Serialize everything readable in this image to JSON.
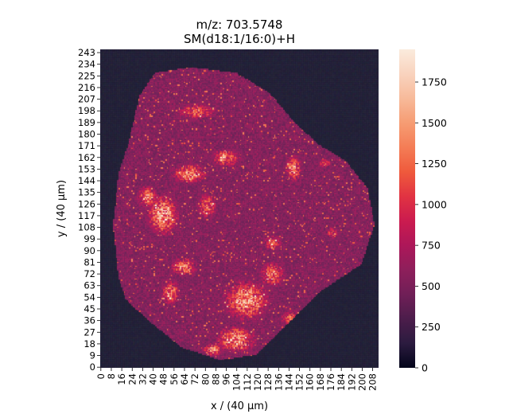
{
  "chart_data": {
    "type": "heatmap",
    "title_line1": "m/z: 703.5748",
    "title_line2": "SM(d18:1/16:0)+H",
    "xlabel": "x / (40 μm)",
    "ylabel": "y / (40 μm)",
    "x_ticks": [
      "0",
      "8",
      "16",
      "24",
      "32",
      "40",
      "48",
      "56",
      "64",
      "72",
      "80",
      "88",
      "96",
      "104",
      "112",
      "120",
      "128",
      "136",
      "144",
      "152",
      "160",
      "168",
      "176",
      "184",
      "192",
      "200",
      "208"
    ],
    "y_ticks": [
      "0",
      "9",
      "18",
      "27",
      "36",
      "45",
      "54",
      "63",
      "72",
      "81",
      "90",
      "99",
      "108",
      "117",
      "126",
      "135",
      "144",
      "153",
      "162",
      "171",
      "180",
      "189",
      "198",
      "207",
      "216",
      "225",
      "234",
      "243"
    ],
    "x_range": [
      0,
      213
    ],
    "y_range": [
      0,
      246
    ],
    "colorbar": {
      "min": 0,
      "max": 1950,
      "ticks": [
        "0",
        "250",
        "500",
        "750",
        "1000",
        "1250",
        "1500",
        "1750"
      ],
      "tick_values": [
        0,
        250,
        500,
        750,
        1000,
        1250,
        1500,
        1750
      ],
      "colormap": "rocket",
      "stops": [
        "#03051a",
        "#2b1b3f",
        "#4c1d4b",
        "#701f57",
        "#8e1f5b",
        "#ad1759",
        "#cb1b4f",
        "#e13342",
        "#ef5a3c",
        "#f47d56",
        "#f69c73",
        "#f7ba9a",
        "#f9d3be",
        "#faebdd"
      ]
    },
    "background_color": "#1f1d34",
    "tissue_regions": [
      {
        "x": 90,
        "y": 120,
        "rx": 90,
        "ry": 105,
        "value": 480
      },
      {
        "x": 60,
        "y": 200,
        "rx": 30,
        "ry": 20,
        "value": 520
      }
    ],
    "hotspots": [
      {
        "x": 48,
        "y": 118,
        "rx": 14,
        "ry": 18,
        "value": 1650
      },
      {
        "x": 36,
        "y": 132,
        "rx": 9,
        "ry": 10,
        "value": 1450
      },
      {
        "x": 74,
        "y": 198,
        "rx": 18,
        "ry": 7,
        "value": 1350
      },
      {
        "x": 68,
        "y": 150,
        "rx": 16,
        "ry": 9,
        "value": 1500
      },
      {
        "x": 96,
        "y": 162,
        "rx": 14,
        "ry": 8,
        "value": 1400
      },
      {
        "x": 148,
        "y": 154,
        "rx": 7,
        "ry": 12,
        "value": 1550
      },
      {
        "x": 82,
        "y": 125,
        "rx": 9,
        "ry": 12,
        "value": 1300
      },
      {
        "x": 64,
        "y": 78,
        "rx": 12,
        "ry": 8,
        "value": 1500
      },
      {
        "x": 54,
        "y": 58,
        "rx": 9,
        "ry": 12,
        "value": 1400
      },
      {
        "x": 112,
        "y": 52,
        "rx": 20,
        "ry": 18,
        "value": 1600
      },
      {
        "x": 132,
        "y": 72,
        "rx": 12,
        "ry": 12,
        "value": 1350
      },
      {
        "x": 104,
        "y": 22,
        "rx": 18,
        "ry": 12,
        "value": 1550
      },
      {
        "x": 86,
        "y": 14,
        "rx": 9,
        "ry": 6,
        "value": 1450
      },
      {
        "x": 146,
        "y": 38,
        "rx": 10,
        "ry": 8,
        "value": 1300
      },
      {
        "x": 132,
        "y": 96,
        "rx": 9,
        "ry": 8,
        "value": 1200
      },
      {
        "x": 178,
        "y": 104,
        "rx": 7,
        "ry": 6,
        "value": 1150
      },
      {
        "x": 172,
        "y": 158,
        "rx": 6,
        "ry": 4,
        "value": 1300
      }
    ]
  }
}
